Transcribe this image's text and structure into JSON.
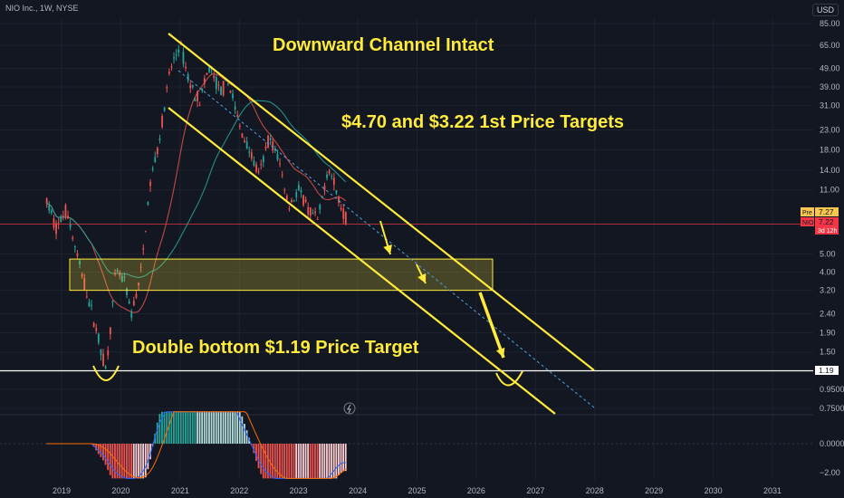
{
  "header": {
    "symbol_label": "NIO Inc., 1W, NYSE",
    "currency": "USD"
  },
  "chart_data": {
    "type": "candlestick",
    "ticker": "NIO",
    "exchange": "NYSE",
    "interval": "1W",
    "y_scale": "log",
    "ylim": [
      0.65,
      90
    ],
    "y_ticks": [
      "85.00",
      "65.00",
      "49.00",
      "39.00",
      "31.00",
      "23.00",
      "18.00",
      "14.00",
      "11.00",
      "5.00",
      "4.00",
      "3.20",
      "2.40",
      "1.90",
      "1.50",
      "1.19",
      "0.9500",
      "0.7500"
    ],
    "x_ticks": [
      "2019",
      "2020",
      "2021",
      "2022",
      "2023",
      "2024",
      "2025",
      "2026",
      "2027",
      "2028",
      "2029",
      "2030",
      "2031"
    ],
    "price_markers": [
      {
        "tag": "Pre",
        "value": "7.27",
        "color": "#f9c74f"
      },
      {
        "tag": "NIO",
        "value": "7.22",
        "sub": "3d 12h",
        "color": "#f23645"
      },
      {
        "tag": "",
        "value": "1.19",
        "color": "#ffffff"
      }
    ],
    "price_path": [
      [
        "2018-10",
        9.5
      ],
      [
        "2018-12",
        6.8
      ],
      [
        "2019-02",
        8.8
      ],
      [
        "2019-04",
        5.0
      ],
      [
        "2019-06",
        3.2
      ],
      [
        "2019-08",
        2.0
      ],
      [
        "2019-10",
        1.19
      ],
      [
        "2019-12",
        4.0
      ],
      [
        "2020-02",
        3.5
      ],
      [
        "2020-03",
        2.3
      ],
      [
        "2020-05",
        3.8
      ],
      [
        "2020-07",
        12.0
      ],
      [
        "2020-09",
        22.0
      ],
      [
        "2020-11",
        48.0
      ],
      [
        "2021-01",
        66.0
      ],
      [
        "2021-03",
        40.0
      ],
      [
        "2021-05",
        33.0
      ],
      [
        "2021-07",
        50.0
      ],
      [
        "2021-09",
        37.0
      ],
      [
        "2021-11",
        41.0
      ],
      [
        "2022-01",
        24.0
      ],
      [
        "2022-03",
        18.0
      ],
      [
        "2022-05",
        13.0
      ],
      [
        "2022-07",
        21.0
      ],
      [
        "2022-09",
        16.0
      ],
      [
        "2022-11",
        9.0
      ],
      [
        "2023-01",
        11.0
      ],
      [
        "2023-03",
        8.5
      ],
      [
        "2023-05",
        7.5
      ],
      [
        "2023-07",
        15.0
      ],
      [
        "2023-09",
        10.0
      ],
      [
        "2023-11",
        7.22
      ]
    ],
    "oscillator": {
      "ylim": [
        -2.0,
        2.0
      ],
      "y_ticks": [
        "0.0000",
        "−2.00"
      ]
    },
    "zone": {
      "low": 3.2,
      "high": 4.7
    },
    "annotations": [
      "Downward Channel Intact",
      "$4.70 and $3.22 1st Price Targets",
      "Double bottom $1.19 Price Target"
    ]
  }
}
